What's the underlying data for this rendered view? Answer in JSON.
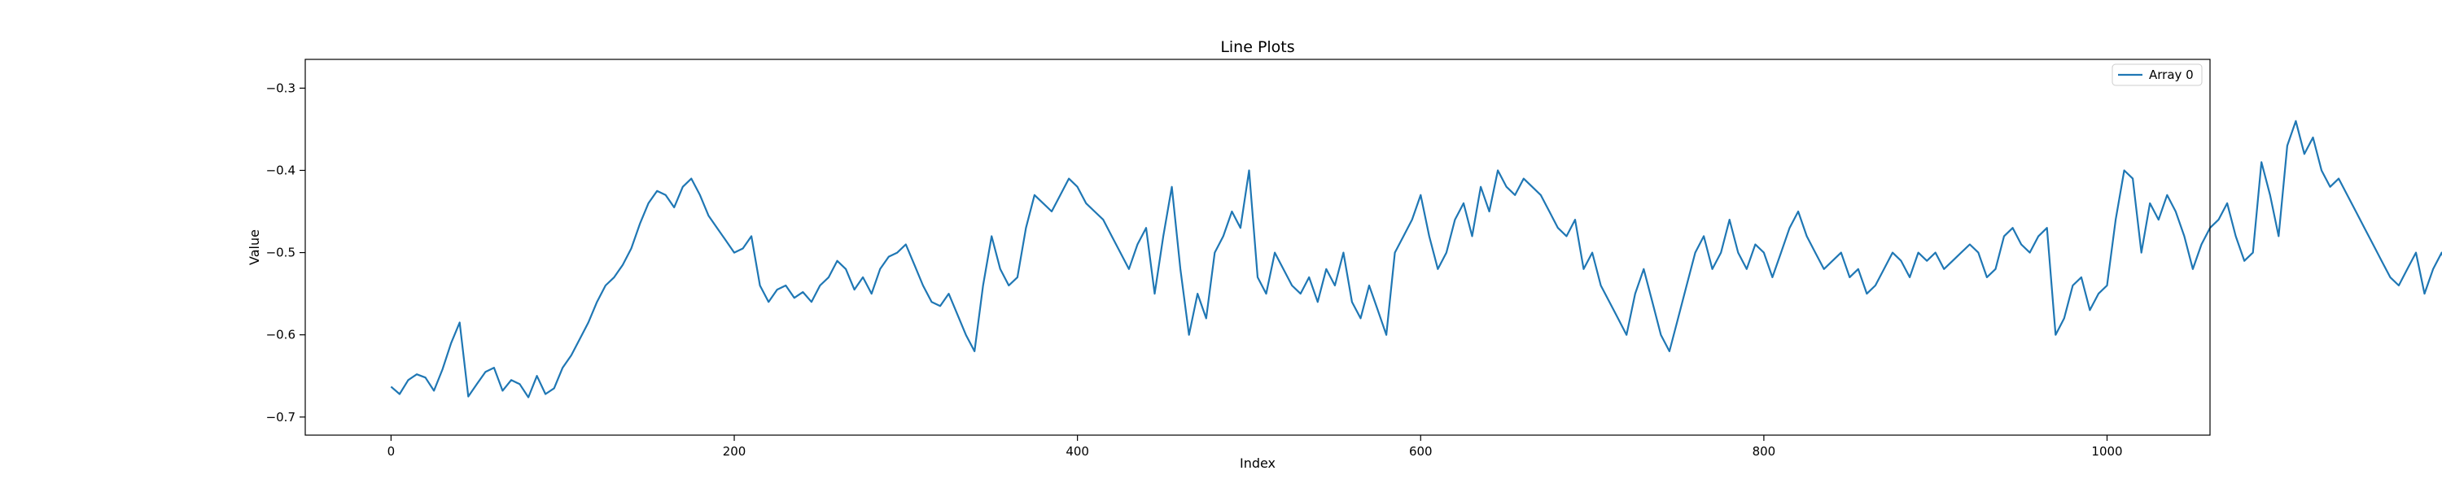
{
  "chart_data": {
    "type": "line",
    "title": "Line Plots",
    "xlabel": "Index",
    "ylabel": "Value",
    "xlim": [
      -50,
      1060
    ],
    "ylim": [
      -0.722,
      -0.265
    ],
    "xticks": [
      0,
      200,
      400,
      600,
      800,
      1000
    ],
    "yticks": [
      -0.7,
      -0.6,
      -0.5,
      -0.4,
      -0.3
    ],
    "legend": {
      "location": "top-right",
      "entries": [
        "Array 0"
      ]
    },
    "grid": false,
    "colors": {
      "series": "#1f77b4",
      "axes": "#000000",
      "background": "#ffffff"
    },
    "series": [
      {
        "name": "Array 0",
        "x_step": 5,
        "values": [
          -0.663,
          -0.672,
          -0.655,
          -0.648,
          -0.652,
          -0.668,
          -0.642,
          -0.61,
          -0.585,
          -0.675,
          -0.66,
          -0.645,
          -0.64,
          -0.668,
          -0.655,
          -0.66,
          -0.676,
          -0.65,
          -0.672,
          -0.665,
          -0.64,
          -0.625,
          -0.605,
          -0.585,
          -0.56,
          -0.54,
          -0.53,
          -0.515,
          -0.495,
          -0.465,
          -0.44,
          -0.425,
          -0.43,
          -0.445,
          -0.42,
          -0.41,
          -0.43,
          -0.455,
          -0.47,
          -0.485,
          -0.5,
          -0.495,
          -0.48,
          -0.54,
          -0.56,
          -0.545,
          -0.54,
          -0.555,
          -0.548,
          -0.56,
          -0.54,
          -0.53,
          -0.51,
          -0.52,
          -0.545,
          -0.53,
          -0.55,
          -0.52,
          -0.505,
          -0.5,
          -0.49,
          -0.515,
          -0.54,
          -0.56,
          -0.565,
          -0.55,
          -0.575,
          -0.6,
          -0.62,
          -0.54,
          -0.48,
          -0.52,
          -0.54,
          -0.53,
          -0.47,
          -0.43,
          -0.44,
          -0.45,
          -0.43,
          -0.41,
          -0.42,
          -0.44,
          -0.45,
          -0.46,
          -0.48,
          -0.5,
          -0.52,
          -0.49,
          -0.47,
          -0.55,
          -0.48,
          -0.42,
          -0.52,
          -0.6,
          -0.55,
          -0.58,
          -0.5,
          -0.48,
          -0.45,
          -0.47,
          -0.4,
          -0.53,
          -0.55,
          -0.5,
          -0.52,
          -0.54,
          -0.55,
          -0.53,
          -0.56,
          -0.52,
          -0.54,
          -0.5,
          -0.56,
          -0.58,
          -0.54,
          -0.57,
          -0.6,
          -0.5,
          -0.48,
          -0.46,
          -0.43,
          -0.48,
          -0.52,
          -0.5,
          -0.46,
          -0.44,
          -0.48,
          -0.42,
          -0.45,
          -0.4,
          -0.42,
          -0.43,
          -0.41,
          -0.42,
          -0.43,
          -0.45,
          -0.47,
          -0.48,
          -0.46,
          -0.52,
          -0.5,
          -0.54,
          -0.56,
          -0.58,
          -0.6,
          -0.55,
          -0.52,
          -0.56,
          -0.6,
          -0.62,
          -0.58,
          -0.54,
          -0.5,
          -0.48,
          -0.52,
          -0.5,
          -0.46,
          -0.5,
          -0.52,
          -0.49,
          -0.5,
          -0.53,
          -0.5,
          -0.47,
          -0.45,
          -0.48,
          -0.5,
          -0.52,
          -0.51,
          -0.5,
          -0.53,
          -0.52,
          -0.55,
          -0.54,
          -0.52,
          -0.5,
          -0.51,
          -0.53,
          -0.5,
          -0.51,
          -0.5,
          -0.52,
          -0.51,
          -0.5,
          -0.49,
          -0.5,
          -0.53,
          -0.52,
          -0.48,
          -0.47,
          -0.49,
          -0.5,
          -0.48,
          -0.47,
          -0.6,
          -0.58,
          -0.54,
          -0.53,
          -0.57,
          -0.55,
          -0.54,
          -0.46,
          -0.4,
          -0.41,
          -0.5,
          -0.44,
          -0.46,
          -0.43,
          -0.45,
          -0.48,
          -0.52,
          -0.49,
          -0.47,
          -0.46,
          -0.44,
          -0.48,
          -0.51,
          -0.5,
          -0.39,
          -0.43,
          -0.48,
          -0.37,
          -0.34,
          -0.38,
          -0.36,
          -0.4,
          -0.42,
          -0.41,
          -0.43,
          -0.45,
          -0.47,
          -0.49,
          -0.51,
          -0.53,
          -0.54,
          -0.52,
          -0.5,
          -0.55,
          -0.52,
          -0.5,
          -0.53,
          -0.48,
          -0.44,
          -0.46,
          -0.52,
          -0.56,
          -0.6,
          -0.55,
          -0.5,
          -0.45,
          -0.49,
          -0.5,
          -0.48,
          -0.5,
          -0.52,
          -0.49,
          -0.46,
          -0.48,
          -0.5,
          -0.47,
          -0.52,
          -0.6,
          -0.45,
          -0.33,
          -0.41,
          -0.42,
          -0.43,
          -0.38,
          -0.52,
          -0.54,
          -0.46,
          -0.45,
          -0.5,
          -0.42,
          -0.6,
          -0.36,
          -0.5,
          -0.45,
          -0.46,
          -0.48,
          -0.45,
          -0.47,
          -0.46,
          -0.45,
          -0.44,
          -0.45,
          -0.44,
          -0.46,
          -0.45,
          -0.43,
          -0.42,
          -0.4,
          -0.39,
          -0.38,
          -0.36,
          -0.34,
          -0.33,
          -0.32,
          -0.33,
          -0.32,
          -0.31,
          -0.3,
          -0.31,
          -0.3,
          -0.3,
          -0.29,
          -0.3,
          -0.305
        ]
      }
    ]
  }
}
